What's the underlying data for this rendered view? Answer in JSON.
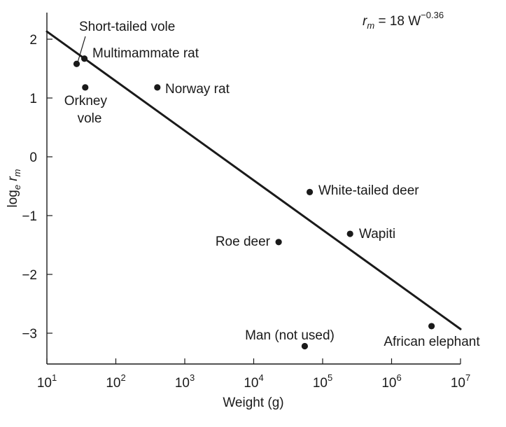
{
  "chart_data": {
    "type": "scatter",
    "title": "",
    "xlabel": "Weight (g)",
    "ylabel": {
      "base": "log",
      "subscript": "e",
      "var": "r",
      "var_subscript": "m"
    },
    "xscale": "log",
    "xlim": [
      10,
      10000000
    ],
    "ylim": [
      -3.5,
      2.45
    ],
    "grid": false,
    "x_ticks": [
      {
        "base": "10",
        "exp": "1"
      },
      {
        "base": "10",
        "exp": "2"
      },
      {
        "base": "10",
        "exp": "3"
      },
      {
        "base": "10",
        "exp": "4"
      },
      {
        "base": "10",
        "exp": "5"
      },
      {
        "base": "10",
        "exp": "6"
      },
      {
        "base": "10",
        "exp": "7"
      }
    ],
    "y_ticks": [
      {
        "value": 2,
        "label": "2"
      },
      {
        "value": 1,
        "label": "1"
      },
      {
        "value": 0,
        "label": "0"
      },
      {
        "value": -1,
        "label": "−1"
      },
      {
        "value": -2,
        "label": "−2"
      },
      {
        "value": -3,
        "label": "−3"
      }
    ],
    "points": [
      {
        "name": "Short-tailed vole",
        "x": 27,
        "y": 1.58
      },
      {
        "name": "Multimammate rat",
        "x": 35,
        "y": 1.67
      },
      {
        "name": "Orkney vole",
        "x": 36,
        "y": 1.18
      },
      {
        "name": "Norway rat",
        "x": 400,
        "y": 1.18
      },
      {
        "name": "White-tailed deer",
        "x": 65000,
        "y": -0.6
      },
      {
        "name": "Roe deer",
        "x": 23000,
        "y": -1.45
      },
      {
        "name": "Wapiti",
        "x": 250000,
        "y": -1.31
      },
      {
        "name": "African elephant",
        "x": 3800000,
        "y": -2.88
      },
      {
        "name": "Man (not used)",
        "x": 55000,
        "y": -3.22
      }
    ],
    "fit_line": {
      "x": [
        10,
        10000000
      ],
      "y": [
        2.13,
        -2.93
      ]
    },
    "equation": {
      "var": "r",
      "var_subscript": "m",
      "rest": " = 18 W",
      "exponent": "−0.36"
    }
  }
}
